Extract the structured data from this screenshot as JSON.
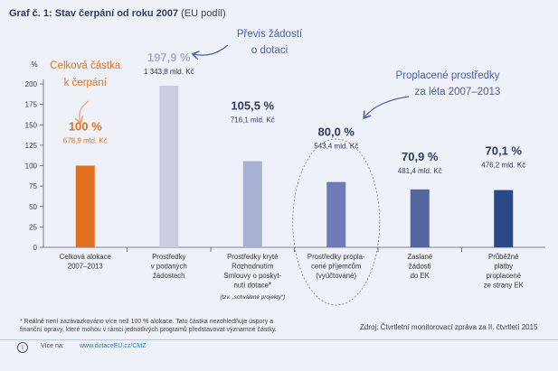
{
  "header": {
    "title_bold": "Graf č. 1: Stav čerpání od roku 2007",
    "title_rest": " (EU podíl)"
  },
  "colors": {
    "orange": "#e07020",
    "bar_colors": [
      "#e07020",
      "#c9cce3",
      "#a8b1d4",
      "#6f7bb8",
      "#55659f",
      "#2b4886"
    ],
    "label_navy": "#2e3b66",
    "annotation": "#4a5ea5"
  },
  "chart_data": {
    "type": "bar",
    "title": "Graf č. 1: Stav čerpání od roku 2007 (EU podíl)",
    "ylabel": "%",
    "ylim": [
      0,
      200
    ],
    "yticks": [
      0,
      25,
      50,
      75,
      100,
      125,
      150,
      175,
      200
    ],
    "grid": false,
    "categories": [
      [
        "Celková alokace",
        "2007–2013"
      ],
      [
        "Prostředky",
        "v podaných",
        "žádostech"
      ],
      [
        "Prostředky kryté",
        "Rozhodnutím",
        "Smlouvy o poskyt-",
        "nutí dotace*"
      ],
      [
        "Prostředky propla-",
        "cené příjemcům",
        "(vyúčtované)"
      ],
      [
        "Zaslané",
        "žádosti",
        "do EK"
      ],
      [
        "Průběžné",
        "platby",
        "proplacené",
        "ze strany EK"
      ]
    ],
    "values": [
      100,
      197.9,
      105.5,
      80.0,
      70.9,
      70.1
    ],
    "value_labels": [
      "100 %",
      "197,9 %",
      "105,5 %",
      "80,0 %",
      "70,9 %",
      "70,1 %"
    ],
    "amount_labels": [
      "678,9 mld. Kč",
      "1 343,8 mld. Kč",
      "716,1 mld. Kč",
      "543,4 mld. Kč",
      "481,4 mld. Kč",
      "476,2 mld. Kč"
    ],
    "category_note": "(tzv. „schválené projekty“)",
    "annotations": {
      "total": [
        "Celková částka",
        "k čerpání"
      ],
      "oversubscription": [
        "Převis žádostí",
        "o dotaci"
      ],
      "reimbursed": [
        "Proplacené prostředky",
        "za léta 2007–2013"
      ]
    }
  },
  "footer": {
    "footnote": "* Reálně není zazávazkováno více než 100 % alokace. Tato částka nezohledňuje úspory a finanční opravy, které mohou v rámci jednotlivých programů představovat významné částky.",
    "source": "Zdroj: Čtvrtletní monitorovací zpráva za II. čtvrtletí 2015",
    "info_icon": "i",
    "more_label": "Více na:",
    "more_link": "www.dotaceEU.cz/CMZ"
  }
}
